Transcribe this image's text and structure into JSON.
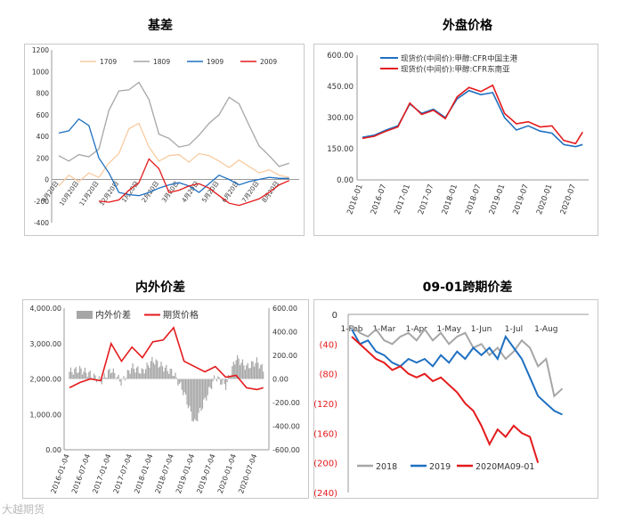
{
  "watermark": "大越期货",
  "chart_data": [
    {
      "id": "basis",
      "type": "line",
      "title": "基差",
      "ylim": [
        -400,
        1200
      ],
      "yticks": [
        -400,
        -200,
        0,
        200,
        400,
        600,
        800,
        1000,
        1200
      ],
      "xticks": [
        "9月20日",
        "10月20日",
        "11月20日",
        "12月20日",
        "1月20日",
        "2月20日",
        "3月20日",
        "4月20日",
        "5月20日",
        "6月20日",
        "7月20日",
        "8月20日"
      ],
      "x": [
        0,
        0.5,
        1,
        1.5,
        2,
        2.5,
        3,
        3.5,
        4,
        4.5,
        5,
        5.5,
        6,
        6.5,
        7,
        7.5,
        8,
        8.5,
        9,
        9.5,
        10,
        10.5,
        11,
        11.5
      ],
      "series": [
        {
          "name": "1709",
          "color": "#f8cba0",
          "values": [
            -60,
            40,
            -20,
            60,
            20,
            150,
            240,
            470,
            520,
            300,
            170,
            220,
            230,
            160,
            240,
            220,
            170,
            110,
            180,
            120,
            60,
            90,
            40,
            20
          ]
        },
        {
          "name": "1809",
          "color": "#a6a6a6",
          "values": [
            220,
            170,
            230,
            210,
            280,
            640,
            820,
            830,
            900,
            740,
            420,
            380,
            300,
            320,
            410,
            520,
            600,
            760,
            700,
            500,
            310,
            220,
            120,
            150
          ]
        },
        {
          "name": "1909",
          "color": "#1f70c1",
          "values": [
            430,
            450,
            560,
            500,
            200,
            60,
            -120,
            -140,
            -150,
            -120,
            -80,
            -50,
            -30,
            -60,
            -120,
            -40,
            40,
            0,
            -50,
            -20,
            0,
            20,
            10,
            10
          ]
        },
        {
          "name": "2009",
          "color": "#e41a1c",
          "values": [
            null,
            null,
            null,
            null,
            -200,
            -210,
            -190,
            -100,
            -30,
            190,
            100,
            -120,
            -100,
            -60,
            -40,
            -80,
            -150,
            -220,
            -240,
            -210,
            -180,
            -120,
            -50,
            -10
          ]
        }
      ]
    },
    {
      "id": "external",
      "type": "line",
      "title": "外盘价格",
      "ylim": [
        0,
        600
      ],
      "yticks": [
        "0.00",
        "150.00",
        "300.00",
        "450.00",
        "600.00"
      ],
      "xticks": [
        "2016-01",
        "2016-07",
        "2017-01",
        "2017-07",
        "2018-01",
        "2018-07",
        "2019-01",
        "2019-07",
        "2020-01",
        "2020-07"
      ],
      "x": [
        0,
        0.5,
        1,
        1.5,
        2,
        2.5,
        3,
        3.5,
        4,
        4.5,
        5,
        5.5,
        6,
        6.5,
        7,
        7.5,
        8,
        8.5,
        9,
        9.3
      ],
      "series": [
        {
          "name": "现货价(中间价):甲醇:CFR中国主港",
          "color": "#1f70c1",
          "values": [
            205,
            215,
            240,
            260,
            365,
            320,
            340,
            300,
            390,
            430,
            410,
            420,
            300,
            240,
            260,
            235,
            225,
            170,
            160,
            170
          ]
        },
        {
          "name": "现货价(中间价):甲醇:CFR东南亚",
          "color": "#e41a1c",
          "values": [
            200,
            210,
            235,
            255,
            370,
            315,
            335,
            295,
            400,
            445,
            425,
            455,
            320,
            270,
            280,
            255,
            260,
            190,
            175,
            230
          ]
        }
      ]
    },
    {
      "id": "spread",
      "type": "bar+line",
      "title": "内外价差",
      "ylim_left": [
        0,
        4000
      ],
      "yticks_left": [
        "0.00",
        "1,000.00",
        "2,000.00",
        "3,000.00",
        "4,000.00"
      ],
      "ylim_right": [
        -600,
        600
      ],
      "yticks_right": [
        "-600.00",
        "-400.00",
        "-200.00",
        "0.00",
        "200.00",
        "400.00",
        "600.00"
      ],
      "xticks": [
        "2016-01-04",
        "2016-07-04",
        "2017-01-04",
        "2017-07-04",
        "2018-01-04",
        "2018-07-04",
        "2019-01-04",
        "2019-07-04",
        "2020-01-04",
        "2020-07-04"
      ],
      "x": [
        0,
        0.5,
        1,
        1.5,
        2,
        2.5,
        3,
        3.5,
        4,
        4.5,
        5,
        5.5,
        6,
        6.5,
        7,
        7.5,
        8,
        8.5,
        9,
        9.3
      ],
      "series": [
        {
          "name": "内外价差",
          "axis": "right",
          "color": "#a6a6a6",
          "values": [
            60,
            80,
            40,
            -20,
            80,
            -30,
            100,
            60,
            160,
            100,
            50,
            -120,
            -380,
            -180,
            20,
            -60,
            180,
            100,
            150,
            80
          ]
        },
        {
          "name": "期货价格",
          "axis": "left",
          "color": "#e41a1c",
          "values": [
            1750,
            1900,
            2000,
            1950,
            3000,
            2500,
            2900,
            2600,
            3050,
            3100,
            3450,
            2500,
            2350,
            2200,
            2350,
            2050,
            2100,
            1750,
            1700,
            1750
          ]
        }
      ]
    },
    {
      "id": "calendar",
      "type": "line",
      "title": "09-01跨期价差",
      "ylim": [
        -240,
        0
      ],
      "yticks": [
        "0",
        "(40)",
        "(80)",
        "(120)",
        "(160)",
        "(200)",
        "(240)"
      ],
      "xticks": [
        "1-Feb",
        "1-Mar",
        "1-Apr",
        "1-May",
        "1-Jun",
        "1-Jul",
        "1-Aug"
      ],
      "x": [
        0,
        0.25,
        0.5,
        0.75,
        1,
        1.25,
        1.5,
        1.75,
        2,
        2.25,
        2.5,
        2.75,
        3,
        3.25,
        3.5,
        3.75,
        4,
        4.25,
        4.5,
        4.75,
        5,
        5.25,
        5.5,
        5.75,
        6,
        6.25,
        6.5
      ],
      "series": [
        {
          "name": "2018",
          "color": "#a6a6a6",
          "values": [
            -15,
            -25,
            -30,
            -20,
            -35,
            -40,
            -30,
            -25,
            -35,
            -20,
            -35,
            -25,
            -40,
            -30,
            -25,
            -45,
            -40,
            -55,
            -45,
            -60,
            -50,
            -35,
            -45,
            -70,
            -60,
            -110,
            -100
          ]
        },
        {
          "name": "2019",
          "color": "#1f70c1",
          "values": [
            -20,
            -40,
            -35,
            -50,
            -55,
            -65,
            -70,
            -60,
            -65,
            -60,
            -70,
            -55,
            -65,
            -50,
            -60,
            -45,
            -55,
            -45,
            -60,
            -30,
            -45,
            -60,
            -85,
            -110,
            -120,
            -130,
            -135
          ]
        },
        {
          "name": "2020MA09-01",
          "color": "#e41a1c",
          "values": [
            -30,
            -40,
            -50,
            -60,
            -65,
            -75,
            -70,
            -80,
            -85,
            -80,
            -90,
            -85,
            -95,
            -105,
            -120,
            -130,
            -150,
            -175,
            -155,
            -165,
            -150,
            -160,
            -165,
            -200,
            null,
            null,
            null
          ]
        }
      ]
    }
  ]
}
